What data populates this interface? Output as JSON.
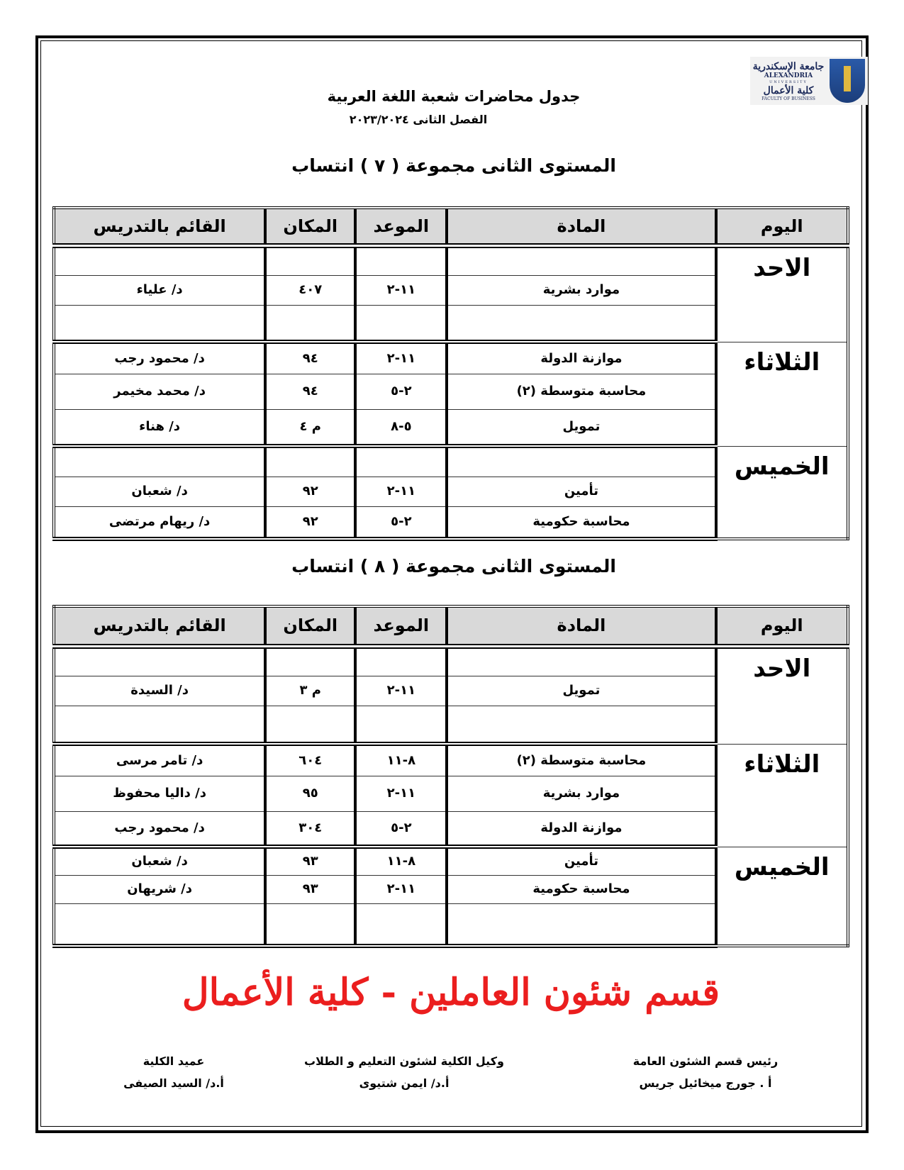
{
  "header": {
    "logo": {
      "arabic": "جامعة الإسكندرية كلية الأعمال",
      "english": "ALEXANDRIA UNIVERSITY",
      "faculty": "FACULTY OF BUSINESS"
    },
    "title": "جدول محاضرات شعبة اللغة العربية",
    "semester": "الفصل الثانى ٢٠٢٣/٢٠٢٤"
  },
  "columns": [
    "اليوم",
    "المادة",
    "الموعد",
    "المكان",
    "القائم بالتدريس"
  ],
  "groups": [
    {
      "heading": "المستوى الثانى مجموعة ( ٧ ) انتساب",
      "days": [
        {
          "day": "الاحد",
          "slots": [
            {
              "subject": "",
              "time": "",
              "place": "",
              "instructor": ""
            },
            {
              "subject": "موارد بشرية",
              "time": "١١-٢",
              "place": "٤٠٧",
              "instructor": "د/ علياء"
            },
            {
              "subject": "",
              "time": "",
              "place": "",
              "instructor": ""
            }
          ]
        },
        {
          "day": "الثلاثاء",
          "slots": [
            {
              "subject": "موازنة الدولة",
              "time": "١١-٢",
              "place": "٩٤",
              "instructor": "د/ محمود رجب"
            },
            {
              "subject": "محاسبة متوسطة (٢)",
              "time": "٢-٥",
              "place": "٩٤",
              "instructor": "د/ محمد مخيمر"
            },
            {
              "subject": "تمويل",
              "time": "٥-٨",
              "place": "م ٤",
              "instructor": "د/ هناء"
            }
          ]
        },
        {
          "day": "الخميس",
          "slots": [
            {
              "subject": "",
              "time": "",
              "place": "",
              "instructor": ""
            },
            {
              "subject": "تأمين",
              "time": "١١-٢",
              "place": "٩٢",
              "instructor": "د/ شعبان"
            },
            {
              "subject": "محاسبة حكومية",
              "time": "٢-٥",
              "place": "٩٢",
              "instructor": "د/ ريهام مرتضى"
            }
          ]
        }
      ]
    },
    {
      "heading": "المستوى الثانى مجموعة ( ٨ ) انتساب",
      "days": [
        {
          "day": "الاحد",
          "slots": [
            {
              "subject": "",
              "time": "",
              "place": "",
              "instructor": ""
            },
            {
              "subject": "تمويل",
              "time": "١١-٢",
              "place": "م ٣",
              "instructor": "د/ السيدة"
            },
            {
              "subject": "",
              "time": "",
              "place": "",
              "instructor": ""
            }
          ]
        },
        {
          "day": "الثلاثاء",
          "slots": [
            {
              "subject": "محاسبة متوسطة (٢)",
              "time": "٨-١١",
              "place": "٦٠٤",
              "instructor": "د/ تامر مرسى"
            },
            {
              "subject": "موارد بشرية",
              "time": "١١-٢",
              "place": "٩٥",
              "instructor": "د/ داليا محفوظ"
            },
            {
              "subject": "موازنة الدولة",
              "time": "٢-٥",
              "place": "٣٠٤",
              "instructor": "د/ محمود رجب"
            }
          ]
        },
        {
          "day": "الخميس",
          "slots": [
            {
              "subject": "تأمين",
              "time": "٨-١١",
              "place": "٩٣",
              "instructor": "د/ شعبان"
            },
            {
              "subject": "محاسبة حكومية",
              "time": "١١-٢",
              "place": "٩٣",
              "instructor": "د/ شريهان"
            },
            {
              "subject": "",
              "time": "",
              "place": "",
              "instructor": ""
            }
          ]
        }
      ]
    }
  ],
  "signatures": [
    {
      "role": "رئيس قسم الشئون العامة",
      "name": "أ . جورج ميخائيل جريس"
    },
    {
      "role": "وكيل الكلية لشئون التعليم و الطلاب",
      "name": "أ.د/ ايمن شتيوى"
    },
    {
      "role": "عميد الكلية",
      "name": "أ.د/ السيد الصيفى"
    }
  ],
  "watermark": {
    "text": "قسم شئون العاملين - كلية الأعمال",
    "color": "#eb1e1e"
  }
}
